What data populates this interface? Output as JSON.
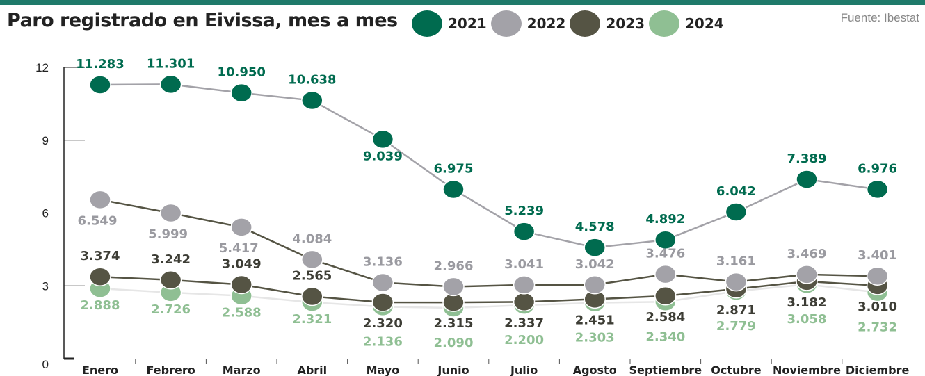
{
  "header": {
    "title": "Paro registrado en Eivissa, mes a mes",
    "source": "Fuente: Ibestat"
  },
  "colors": {
    "topbar": "#1f7a6a",
    "s2021": "#006b4f",
    "s2022": "#a3a2a8",
    "s2023": "#555444",
    "s2024": "#8fbf93"
  },
  "chart_data": {
    "type": "line",
    "title": "Paro registrado en Eivissa, mes a mes",
    "xlabel": "",
    "ylabel": "",
    "ylim": [
      0,
      12
    ],
    "yticks": [
      0,
      3,
      6,
      9,
      12
    ],
    "ytick_labels": [
      "0",
      "3",
      "6",
      "9",
      "12"
    ],
    "legend_position": "top",
    "grid": false,
    "categories": [
      "Enero",
      "Febrero",
      "Marzo",
      "Abril",
      "Mayo",
      "Junio",
      "Julio",
      "Agosto",
      "Septiembre",
      "Octubre",
      "Noviembre",
      "Diciembre"
    ],
    "series": [
      {
        "name": "2021",
        "values": [
          11.283,
          11.301,
          10.95,
          10.638,
          9.039,
          6.975,
          5.239,
          4.578,
          4.892,
          6.042,
          7.389,
          6.976
        ],
        "labels": [
          "11.283",
          "11.301",
          "10.950",
          "10.638",
          "9.039",
          "6.975",
          "5.239",
          "4.578",
          "4.892",
          "6.042",
          "7.389",
          "6.976"
        ]
      },
      {
        "name": "2022",
        "values": [
          6.549,
          5.999,
          5.417,
          4.084,
          3.136,
          2.966,
          3.041,
          3.042,
          3.476,
          3.161,
          3.469,
          3.401
        ],
        "labels": [
          "6.549",
          "5.999",
          "5.417",
          "4.084",
          "3.136",
          "2.966",
          "3.041",
          "3.042",
          "3.476",
          "3.161",
          "3.469",
          "3.401"
        ]
      },
      {
        "name": "2023",
        "values": [
          3.374,
          3.242,
          3.049,
          2.565,
          2.32,
          2.315,
          2.337,
          2.451,
          2.584,
          2.871,
          3.182,
          3.01
        ],
        "labels": [
          "3.374",
          "3.242",
          "3.049",
          "2.565",
          "2.320",
          "2.315",
          "2.337",
          "2.451",
          "2.584",
          "2.871",
          "3.182",
          "3.010"
        ]
      },
      {
        "name": "2024",
        "values": [
          2.888,
          2.726,
          2.588,
          2.321,
          2.136,
          2.09,
          2.2,
          2.303,
          2.34,
          2.779,
          3.058,
          2.732
        ],
        "labels": [
          "2.888",
          "2.726",
          "2.588",
          "2.321",
          "2.136",
          "2.090",
          "2.200",
          "2.303",
          "2.340",
          "2.779",
          "3.058",
          "2.732"
        ]
      }
    ]
  }
}
